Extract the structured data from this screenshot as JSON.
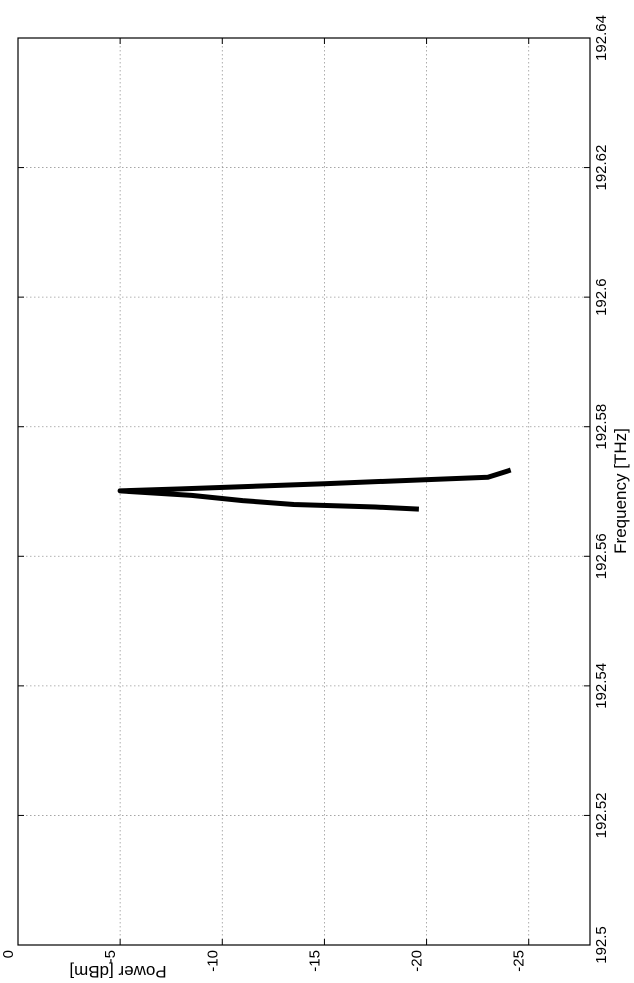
{
  "chart_data": {
    "type": "line",
    "orientation": "rotated-90-clockwise",
    "title": "",
    "xlabel": "Frequency [THz]",
    "ylabel": "Power [dBm]",
    "xlim": [
      192.5,
      192.64
    ],
    "ylim": [
      -28,
      0
    ],
    "x_ticks": [
      192.5,
      192.52,
      192.54,
      192.56,
      192.58,
      192.6,
      192.62,
      192.64
    ],
    "x_tick_labels": [
      "192.5",
      "192.52",
      "192.54",
      "192.56",
      "192.58",
      "192.6",
      "192.62",
      "192.64"
    ],
    "y_ticks": [
      0,
      -5,
      -10,
      -15,
      -20,
      -25
    ],
    "y_tick_labels": [
      "0",
      "-5",
      "-10",
      "-15",
      "-20",
      "-25"
    ],
    "grid": true,
    "line_color": "#000000",
    "series": [
      {
        "x": [
          192.5673,
          192.5676,
          192.568,
          192.5686,
          192.5694,
          192.5701,
          192.5704,
          192.5712,
          192.5722,
          192.5732
        ],
        "y": [
          -19.5,
          -17.5,
          -13.5,
          -11.0,
          -8.5,
          -5.0,
          -8.0,
          -15.0,
          -23.0,
          -24.0
        ]
      }
    ]
  }
}
